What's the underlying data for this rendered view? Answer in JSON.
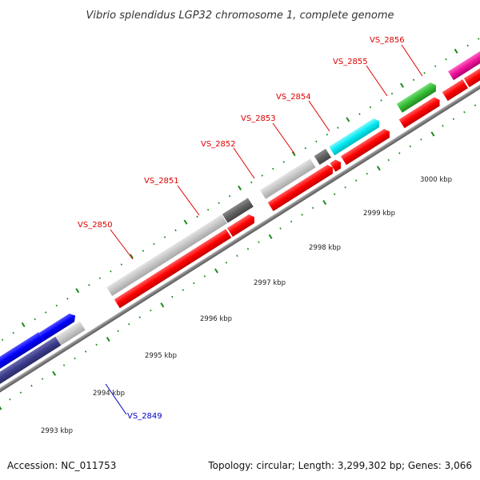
{
  "title": "Vibrio splendidus LGP32 chromosome 1, complete genome",
  "genes": {
    "VS_2849": "VS_2849",
    "VS_2850": "VS_2850",
    "VS_2851": "VS_2851",
    "VS_2852": "VS_2852",
    "VS_2853": "VS_2853",
    "VS_2854": "VS_2854",
    "VS_2855": "VS_2855",
    "VS_2856": "VS_2856"
  },
  "ticks": [
    "2993 kbp",
    "2994 kbp",
    "2995 kbp",
    "2996 kbp",
    "2997 kbp",
    "2998 kbp",
    "2999 kbp",
    "3000 kbp"
  ],
  "footer": {
    "accession": "Accession: NC_011753",
    "summary": "Topology: circular; Length: 3,299,302 bp; Genes: 3,066"
  },
  "colors": {
    "gene_label_forward": "#dd0000",
    "gene_label_reverse": "#0000cc",
    "tick": "#1a8a1a",
    "backbone": "#808080",
    "cds_red": "#ff0000",
    "cds_gray": "#c8c8c8",
    "cds_darkgray": "#606060",
    "cds_cyan": "#00e8f0",
    "cds_green": "#33bb33",
    "cds_magenta": "#ee1199",
    "cds_blue": "#0000ff",
    "cds_navy": "#3c3c8c"
  }
}
